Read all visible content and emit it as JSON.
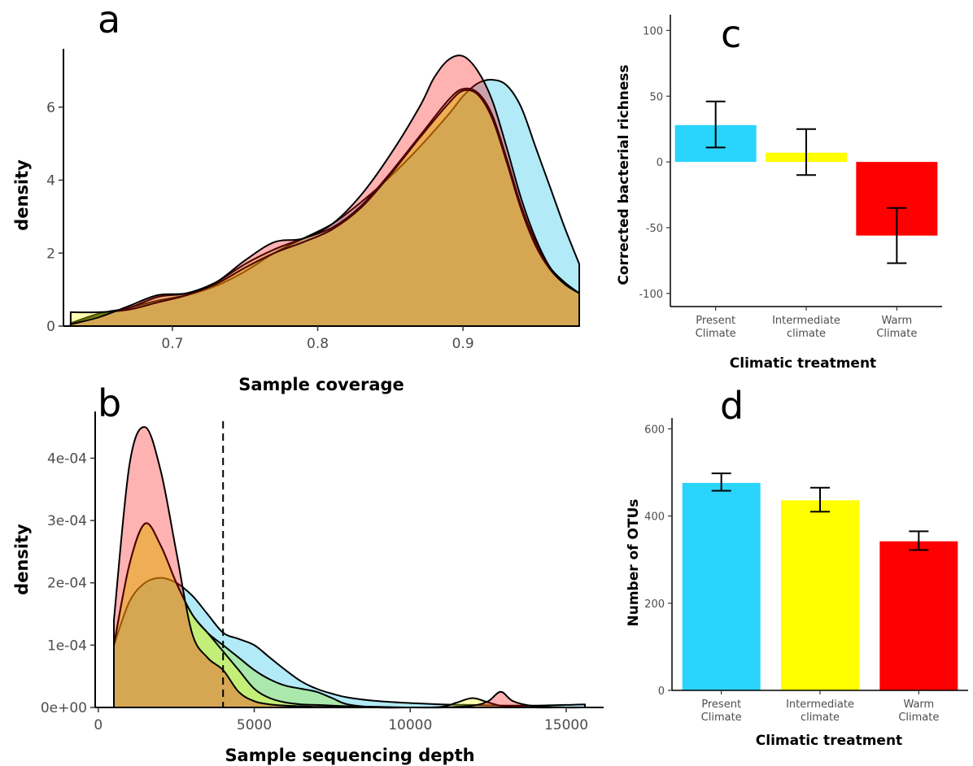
{
  "panels": {
    "a": {
      "label": "a",
      "chart_data": {
        "type": "area",
        "xlabel": "Sample coverage",
        "ylabel": "density",
        "xlim": [
          0.625,
          0.98
        ],
        "ylim": [
          0,
          7.6
        ],
        "xticks": [
          0.7,
          0.8,
          0.9
        ],
        "yticks": [
          0,
          2,
          4,
          6
        ],
        "grid": false,
        "series": [
          {
            "color": "#00b8e6",
            "x": [
              0.63,
              0.65,
              0.67,
              0.69,
              0.71,
              0.73,
              0.75,
              0.77,
              0.79,
              0.81,
              0.83,
              0.85,
              0.87,
              0.89,
              0.9,
              0.91,
              0.92,
              0.93,
              0.94,
              0.95,
              0.96,
              0.97,
              0.98
            ],
            "y": [
              0.08,
              0.3,
              0.5,
              0.7,
              0.85,
              1.1,
              1.5,
              2.0,
              2.4,
              2.8,
              3.4,
              4.1,
              4.9,
              5.8,
              6.3,
              6.65,
              6.75,
              6.6,
              6.0,
              4.9,
              3.8,
              2.7,
              1.7
            ]
          },
          {
            "color": "#99e600",
            "x": [
              0.63,
              0.65,
              0.67,
              0.69,
              0.71,
              0.73,
              0.75,
              0.77,
              0.79,
              0.81,
              0.83,
              0.85,
              0.87,
              0.89,
              0.9,
              0.91,
              0.92,
              0.93,
              0.94,
              0.95,
              0.96,
              0.97,
              0.98
            ],
            "y": [
              0.08,
              0.35,
              0.5,
              0.8,
              0.9,
              1.2,
              1.7,
              2.1,
              2.4,
              2.7,
              3.3,
              4.2,
              5.2,
              6.2,
              6.5,
              6.4,
              5.8,
              4.6,
              3.3,
              2.3,
              1.6,
              1.2,
              0.9
            ]
          },
          {
            "color": "#ffff00",
            "x": [
              0.63,
              0.65,
              0.67,
              0.69,
              0.71,
              0.73,
              0.75,
              0.77,
              0.79,
              0.81,
              0.83,
              0.85,
              0.87,
              0.89,
              0.9,
              0.91,
              0.92,
              0.93,
              0.94,
              0.95,
              0.96,
              0.97,
              0.98
            ],
            "y": [
              0.38,
              0.38,
              0.45,
              0.65,
              0.85,
              1.15,
              1.6,
              2.0,
              2.3,
              2.65,
              3.25,
              4.15,
              5.15,
              6.1,
              6.45,
              6.35,
              5.7,
              4.5,
              3.2,
              2.2,
              1.55,
              1.15,
              0.9
            ]
          },
          {
            "color": "#ff0000",
            "x": [
              0.63,
              0.65,
              0.67,
              0.69,
              0.71,
              0.73,
              0.75,
              0.77,
              0.79,
              0.81,
              0.83,
              0.85,
              0.87,
              0.88,
              0.89,
              0.9,
              0.91,
              0.92,
              0.93,
              0.94,
              0.95,
              0.96,
              0.97,
              0.98
            ],
            "y": [
              0.05,
              0.25,
              0.55,
              0.85,
              0.9,
              1.2,
              1.8,
              2.3,
              2.4,
              2.8,
              3.6,
              4.7,
              6.0,
              6.8,
              7.3,
              7.4,
              7.0,
              6.2,
              4.9,
              3.5,
              2.4,
              1.6,
              1.15,
              0.9
            ]
          }
        ]
      }
    },
    "b": {
      "label": "b",
      "chart_data": {
        "type": "area",
        "xlabel": "Sample sequencing depth",
        "ylabel": "density",
        "xlim": [
          -100,
          16200
        ],
        "ylim": [
          0,
          0.000475
        ],
        "xticks": [
          0,
          5000,
          10000,
          15000
        ],
        "yticks": [
          0,
          0.0001,
          0.0002,
          0.0003,
          0.0004
        ],
        "ytick_labels": [
          "0e+00",
          "1e-04",
          "2e-04",
          "3e-04",
          "4e-04"
        ],
        "grid": false,
        "vline_x": 4000,
        "series": [
          {
            "color": "#00b8e6",
            "x": [
              500,
              1000,
              1500,
              2000,
              2500,
              3000,
              3500,
              4000,
              4500,
              5000,
              5500,
              6000,
              6500,
              7000,
              7500,
              8000,
              9000,
              10000,
              11000,
              12000,
              13000,
              14000,
              15000,
              15600
            ],
            "y": [
              0.0001,
              0.00017,
              0.0002,
              0.000208,
              0.0002,
              0.00018,
              0.00015,
              0.00012,
              0.00011,
              0.0001,
              8e-05,
              6e-05,
              4.2e-05,
              3e-05,
              2.2e-05,
              1.6e-05,
              1e-05,
              7e-06,
              5e-06,
              4e-06,
              3e-06,
              3e-06,
              4e-06,
              5e-06
            ]
          },
          {
            "color": "#99e600",
            "x": [
              500,
              1000,
              1500,
              2000,
              2500,
              3000,
              3500,
              4000,
              4500,
              5000,
              5500,
              6000,
              6500,
              7000,
              7500,
              8000,
              9000,
              10000,
              11000,
              12000,
              13000,
              14000,
              15000,
              15600
            ],
            "y": [
              0.0001,
              0.00023,
              0.000295,
              0.00026,
              0.0002,
              0.00015,
              0.00012,
              0.0001,
              8e-05,
              6e-05,
              4.5e-05,
              3.5e-05,
              3e-05,
              2.5e-05,
              1.5e-05,
              5e-06,
              0,
              0,
              0,
              0,
              0,
              0,
              0,
              0
            ]
          },
          {
            "color": "#ffff00",
            "x": [
              500,
              1000,
              1500,
              2000,
              2500,
              3000,
              3500,
              4000,
              4500,
              5000,
              5500,
              6000,
              6500,
              7000,
              7500,
              8000,
              9000,
              10000,
              11000,
              11500,
              12000,
              12500,
              13000,
              14000,
              15000,
              15600
            ],
            "y": [
              0.0001,
              0.00023,
              0.000295,
              0.00026,
              0.0002,
              0.00015,
              0.00012,
              9e-05,
              6e-05,
              3e-05,
              1.5e-05,
              8e-06,
              5e-06,
              4e-06,
              3e-06,
              2e-06,
              1e-06,
              0,
              1e-06,
              8e-06,
              1.5e-05,
              8e-06,
              2e-06,
              0,
              0,
              0
            ]
          },
          {
            "color": "#ff0000",
            "x": [
              500,
              1000,
              1500,
              2000,
              2500,
              3000,
              3500,
              4000,
              4500,
              5000,
              5500,
              6000,
              6500,
              7000,
              7500,
              8000,
              9000,
              10000,
              11000,
              12000,
              12500,
              12900,
              13300,
              14000,
              15000,
              15600
            ],
            "y": [
              0.00014,
              0.00039,
              0.00045,
              0.00038,
              0.00025,
              0.00012,
              8e-05,
              6e-05,
              2.5e-05,
              1e-05,
              5e-06,
              3e-06,
              2e-06,
              1e-06,
              1e-06,
              0,
              0,
              0,
              0,
              3e-06,
              1e-05,
              2.5e-05,
              1e-05,
              2e-06,
              0,
              0
            ]
          }
        ]
      }
    },
    "c": {
      "label": "c",
      "chart_data": {
        "type": "bar",
        "categories": [
          "Present Climate",
          "Intermediate climate",
          "Warm Climate"
        ],
        "category_lines": [
          [
            "Present",
            "Climate"
          ],
          [
            "Intermediate",
            "climate"
          ],
          [
            "Warm",
            "Climate"
          ]
        ],
        "values": [
          28,
          7,
          -56
        ],
        "err_low": [
          11,
          -10,
          -77
        ],
        "err_high": [
          46,
          25,
          -35
        ],
        "colors": [
          "#29d4fd",
          "#ffff00",
          "#ff0000"
        ],
        "xlabel": "Climatic treatment",
        "ylabel": "Corrected bacterial richness",
        "ylim": [
          -110,
          112
        ],
        "yticks": [
          -100,
          -50,
          0,
          50,
          100
        ],
        "ytick_labels": [
          "-100",
          "-50",
          "0",
          "50",
          "100"
        ],
        "grid": false
      }
    },
    "d": {
      "label": "d",
      "chart_data": {
        "type": "bar",
        "categories": [
          "Present Climate",
          "Intermediate climate",
          "Warm Climate"
        ],
        "category_lines": [
          [
            "Present",
            "Climate"
          ],
          [
            "Intermediate",
            "climate"
          ],
          [
            "Warm",
            "Climate"
          ]
        ],
        "values": [
          476,
          436,
          342
        ],
        "err_low": [
          458,
          410,
          322
        ],
        "err_high": [
          498,
          465,
          365
        ],
        "colors": [
          "#29d4fd",
          "#ffff00",
          "#ff0000"
        ],
        "xlabel": "Climatic treatment",
        "ylabel": "Number of OTUs",
        "ylim": [
          0,
          625
        ],
        "yticks": [
          0,
          200,
          400,
          600
        ],
        "ytick_labels": [
          "0",
          "200",
          "400",
          "600"
        ],
        "grid": false
      }
    }
  }
}
